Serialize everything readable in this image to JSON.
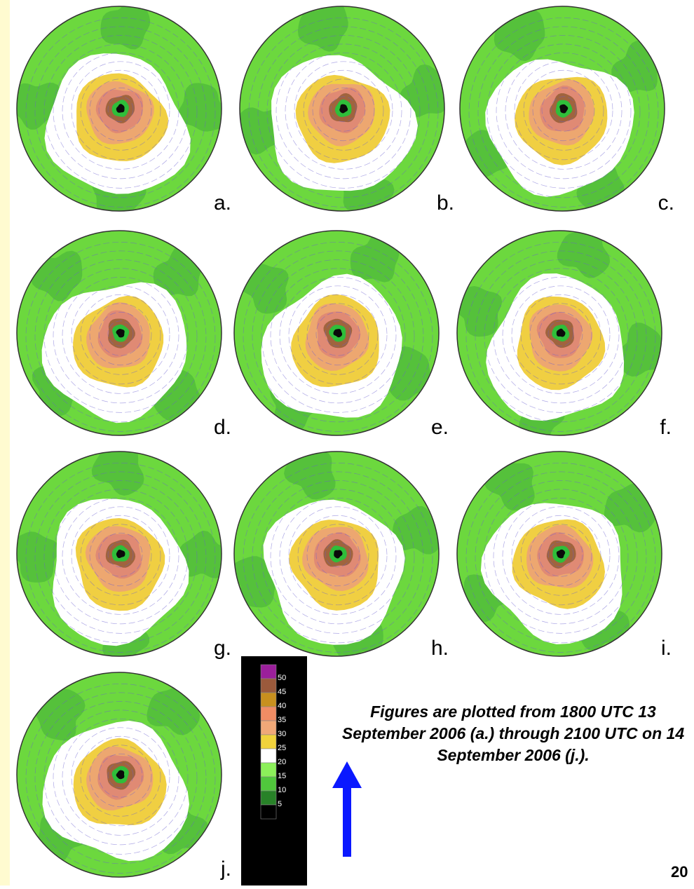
{
  "panels": [
    {
      "label": "a."
    },
    {
      "label": "b."
    },
    {
      "label": "c."
    },
    {
      "label": "d."
    },
    {
      "label": "e."
    },
    {
      "label": "f."
    },
    {
      "label": "g."
    },
    {
      "label": "h."
    },
    {
      "label": "i."
    },
    {
      "label": "j."
    }
  ],
  "legend": {
    "ticks": [
      "50",
      "45",
      "40",
      "35",
      "30",
      "25",
      "20",
      "15",
      "10",
      "5"
    ],
    "colors": [
      "#9b1f9b",
      "#9b5a3c",
      "#c8901e",
      "#f08c64",
      "#f0a878",
      "#f0d23c",
      "#ffffff",
      "#8cf05a",
      "#50c83c",
      "#288228",
      "#000000"
    ]
  },
  "field_colors": {
    "outer": "#6cd83e",
    "outer_dark": "#4cb83a",
    "white_band": "#ffffff",
    "yellow": "#f0cf42",
    "orange": "#eda770",
    "salmon": "#e08a74",
    "brown": "#a0643e",
    "eye_ring": "#2fbe3a",
    "eye": "#0a0a0a",
    "barb": "#6a5fd0"
  },
  "caption": "Figures are plotted from 1800 UTC 13 September 2006 (a.) through 2100 UTC on 14 September 2006 (j.).",
  "page_number": "20",
  "arrow_color": "#0a18ff"
}
